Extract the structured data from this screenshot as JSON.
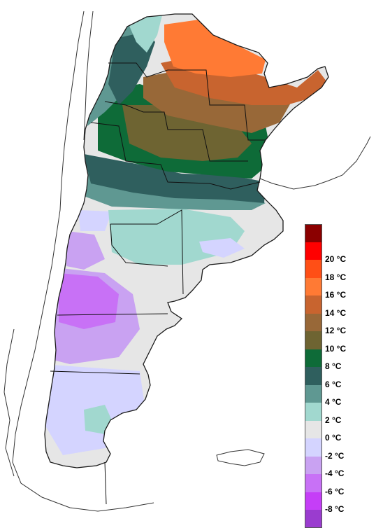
{
  "map": {
    "region": "Argentina",
    "type": "temperature-isotherm-map",
    "colors": {
      "background": "#ffffff",
      "border": "#1a1a1a",
      "neighbor_outline": "#333333"
    }
  },
  "legend": {
    "items": [
      {
        "color": "#8b0000",
        "label": ""
      },
      {
        "color": "#ff0000",
        "label": "20 °C"
      },
      {
        "color": "#ff4f16",
        "label": "18 °C"
      },
      {
        "color": "#ff7a34",
        "label": "16 °C"
      },
      {
        "color": "#c8642f",
        "label": "14 °C"
      },
      {
        "color": "#986838",
        "label": "12 °C"
      },
      {
        "color": "#6e6432",
        "label": "10 °C"
      },
      {
        "color": "#0e6b38",
        "label": "8 °C"
      },
      {
        "color": "#2f5f5e",
        "label": "6 °C"
      },
      {
        "color": "#5f9892",
        "label": "4 °C"
      },
      {
        "color": "#a1d8cf",
        "label": "2 °C"
      },
      {
        "color": "#e6e6e6",
        "label": "0 °C"
      },
      {
        "color": "#d4d4ff",
        "label": "-2 °C"
      },
      {
        "color": "#c9a2f2",
        "label": "-4 °C"
      },
      {
        "color": "#c871f6",
        "label": "-6 °C"
      },
      {
        "color": "#c53ef7",
        "label": "-8 °C"
      },
      {
        "color": "#9a3ccf",
        "label": ""
      }
    ]
  }
}
